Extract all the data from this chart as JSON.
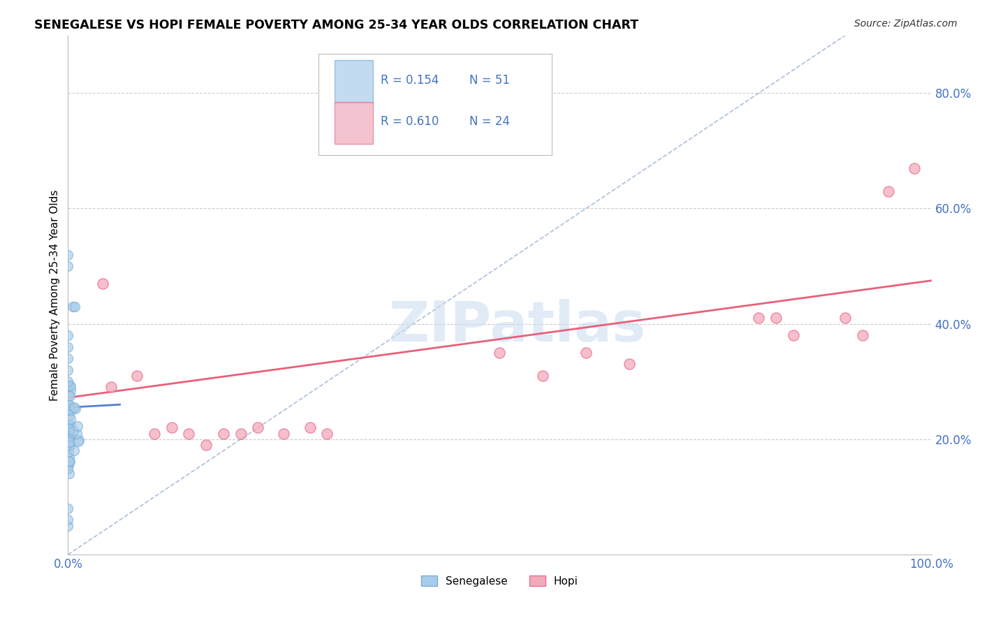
{
  "title": "SENEGALESE VS HOPI FEMALE POVERTY AMONG 25-34 YEAR OLDS CORRELATION CHART",
  "source": "Source: ZipAtlas.com",
  "ylabel_label": "Female Poverty Among 25-34 Year Olds",
  "r_senegalese": 0.154,
  "n_senegalese": 51,
  "r_hopi": 0.61,
  "n_hopi": 24,
  "xlim": [
    0.0,
    1.0
  ],
  "ylim": [
    0.0,
    0.9
  ],
  "xtick_positions": [
    0.0,
    1.0
  ],
  "xtick_labels": [
    "0.0%",
    "100.0%"
  ],
  "ytick_positions": [
    0.2,
    0.4,
    0.6,
    0.8
  ],
  "ytick_labels": [
    "20.0%",
    "40.0%",
    "60.0%",
    "80.0%"
  ],
  "color_senegalese_fill": "#A8CCEA",
  "color_senegalese_edge": "#7BAFD4",
  "color_hopi_fill": "#F2AABB",
  "color_hopi_edge": "#E87090",
  "trendline_hopi_color": "#E8607A",
  "trendline_sen_color": "#5580CC",
  "diagonal_color": "#AABFDC",
  "grid_color": "#CCCCCC",
  "watermark": "ZIPatlas",
  "hopi_x": [
    0.04,
    0.05,
    0.08,
    0.1,
    0.12,
    0.14,
    0.16,
    0.18,
    0.2,
    0.22,
    0.25,
    0.28,
    0.3,
    0.5,
    0.55,
    0.6,
    0.65,
    0.8,
    0.82,
    0.84,
    0.9,
    0.92,
    0.95,
    0.98
  ],
  "hopi_y": [
    0.47,
    0.29,
    0.31,
    0.21,
    0.22,
    0.21,
    0.19,
    0.21,
    0.21,
    0.22,
    0.21,
    0.22,
    0.21,
    0.35,
    0.31,
    0.35,
    0.33,
    0.41,
    0.41,
    0.38,
    0.41,
    0.38,
    0.63,
    0.67
  ],
  "hopi_trend_x0": 0.0,
  "hopi_trend_x1": 1.0,
  "hopi_trend_y0": 0.272,
  "hopi_trend_y1": 0.475,
  "sen_trend_x0": 0.0,
  "sen_trend_x1": 0.06,
  "sen_trend_y0": 0.255,
  "sen_trend_y1": 0.26
}
